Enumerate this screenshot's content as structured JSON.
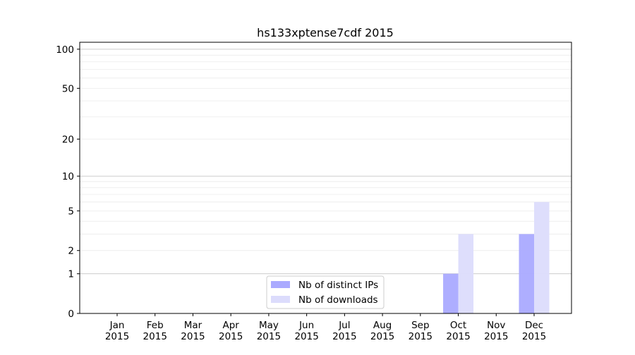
{
  "chart_data": {
    "type": "bar",
    "title": "hs133xptense7cdf 2015",
    "xlabel": "",
    "ylabel": "",
    "yscale": "log(1+y)",
    "ylim": [
      0,
      113
    ],
    "yticks": [
      0,
      1,
      2,
      5,
      10,
      20,
      50,
      100
    ],
    "yminor": [
      3,
      4,
      6,
      7,
      8,
      9,
      30,
      40,
      60,
      70,
      80,
      90
    ],
    "grid": true,
    "legend_position": "lower-center",
    "categories": [
      "Jan\n2015",
      "Feb\n2015",
      "Mar\n2015",
      "Apr\n2015",
      "May\n2015",
      "Jun\n2015",
      "Jul\n2015",
      "Aug\n2015",
      "Sep\n2015",
      "Oct\n2015",
      "Nov\n2015",
      "Dec\n2015"
    ],
    "series": [
      {
        "name": "Nb of distinct IPs",
        "color": "#aaaaff",
        "values": [
          0,
          0,
          0,
          0,
          0,
          0,
          0,
          0,
          0,
          1,
          0,
          3
        ]
      },
      {
        "name": "Nb of downloads",
        "color": "#dcdcfc",
        "values": [
          0,
          0,
          0,
          0,
          0,
          0,
          0,
          0,
          0,
          3,
          0,
          6
        ]
      }
    ]
  }
}
